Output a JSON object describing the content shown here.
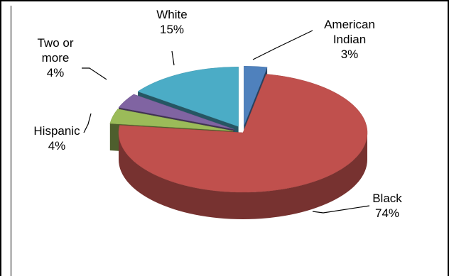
{
  "chart_data": {
    "type": "pie",
    "title": "",
    "three_d": true,
    "slices": [
      {
        "label": "American Indian",
        "label_lines": [
          "American",
          "Indian"
        ],
        "percent_label": "3%",
        "value": 3,
        "color": "#4f81bd",
        "exploded": true
      },
      {
        "label": "Black",
        "label_lines": [
          "Black"
        ],
        "percent_label": "74%",
        "value": 74,
        "color": "#c0504d",
        "exploded": false
      },
      {
        "label": "Hispanic",
        "label_lines": [
          "Hispanic"
        ],
        "percent_label": "4%",
        "value": 4,
        "color": "#9bbb59",
        "exploded": true
      },
      {
        "label": "Two or more",
        "label_lines": [
          "Two or",
          "more"
        ],
        "percent_label": "4%",
        "value": 4,
        "color": "#8064a2",
        "exploded": true
      },
      {
        "label": "White",
        "label_lines": [
          "White"
        ],
        "percent_label": "15%",
        "value": 15,
        "color": "#4bacc6",
        "exploded": true
      }
    ]
  }
}
